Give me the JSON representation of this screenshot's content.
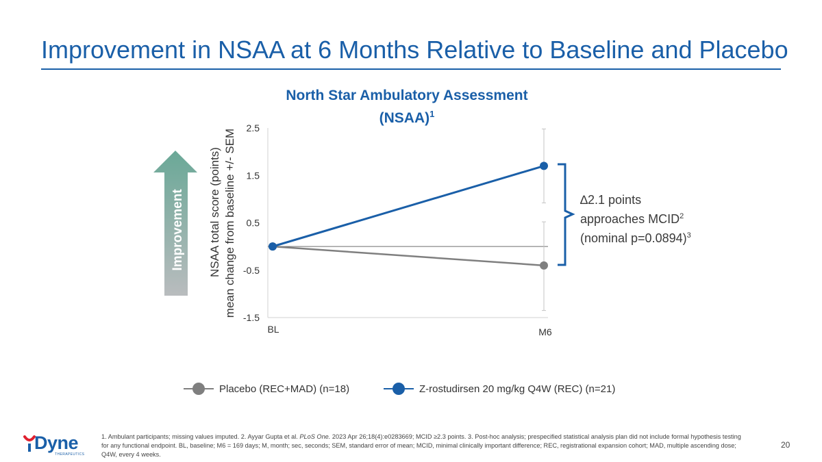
{
  "slide": {
    "title": "Improvement in NSAA at 6 Months Relative to Baseline and Placebo",
    "page_number": "20"
  },
  "chart_data": {
    "type": "line",
    "title_main": "North Star Ambulatory Assessment",
    "title_sub": "(NSAA)",
    "title_sup": "1",
    "ylabel_line1": "NSAA total score (points)",
    "ylabel_line2": "mean change from baseline +/- SEM",
    "improvement_label": "Improvement",
    "categories": [
      "BL",
      "M6"
    ],
    "ylim": [
      -1.5,
      2.5
    ],
    "yticks": [
      {
        "value": 2.5,
        "label": "2.5"
      },
      {
        "value": 1.5,
        "label": "1.5"
      },
      {
        "value": 0.5,
        "label": "0.5"
      },
      {
        "value": -0.5,
        "label": "-0.5"
      },
      {
        "value": -1.5,
        "label": "-1.5"
      }
    ],
    "reference_line": 0,
    "series": [
      {
        "name": "Placebo (REC+MAD) (n=18)",
        "color": "#7f7f7f",
        "values": [
          0,
          -0.4
        ],
        "error_low": [
          null,
          -1.35
        ],
        "error_high": [
          null,
          0.52
        ]
      },
      {
        "name": "Z-rostudirsen 20 mg/kg Q4W (REC) (n=21)",
        "color": "#1a5fa8",
        "values": [
          0,
          1.7
        ],
        "error_low": [
          null,
          0.92
        ],
        "error_high": [
          null,
          2.48
        ]
      }
    ],
    "annotation": {
      "line1": "∆2.1 points",
      "line2": "approaches MCID",
      "line2_sup": "2",
      "line3": "(nominal p=0.0894)",
      "line3_sup": "3"
    }
  },
  "footnote": {
    "part1": "1. Ambulant participants; missing values imputed. 2. Ayyar Gupta et al. ",
    "journal": "PLoS One.",
    "part2": " 2023 Apr 26;18(4):e0283669; MCID ≥2.3 points. 3. Post-hoc analysis; prespecified statistical analysis plan did not include formal hypothesis testing for any functional endpoint. BL, baseline; M6 = 169 days; M, month; sec, seconds; SEM, standard error of mean; MCID, minimal clinically important difference; REC, registrational expansion cohort; MAD, multiple ascending dose; Q4W, every 4 weeks."
  },
  "logo": {
    "word": "Dyne",
    "subtitle": "THERAPEUTICS"
  },
  "colors": {
    "brand": "#1a5fa8",
    "placebo": "#7f7f7f",
    "arrow_top": "#6aa897",
    "arrow_bottom": "#b9bcbe"
  }
}
